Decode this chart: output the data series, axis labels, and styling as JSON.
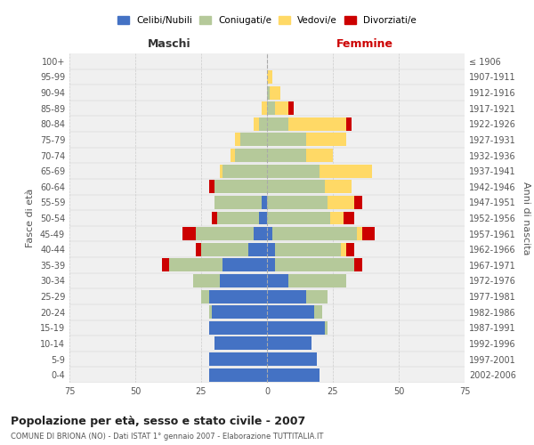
{
  "age_groups": [
    "0-4",
    "5-9",
    "10-14",
    "15-19",
    "20-24",
    "25-29",
    "30-34",
    "35-39",
    "40-44",
    "45-49",
    "50-54",
    "55-59",
    "60-64",
    "65-69",
    "70-74",
    "75-79",
    "80-84",
    "85-89",
    "90-94",
    "95-99",
    "100+"
  ],
  "birth_years": [
    "2002-2006",
    "1997-2001",
    "1992-1996",
    "1987-1991",
    "1982-1986",
    "1977-1981",
    "1972-1976",
    "1967-1971",
    "1962-1966",
    "1957-1961",
    "1952-1956",
    "1947-1951",
    "1942-1946",
    "1937-1941",
    "1932-1936",
    "1927-1931",
    "1922-1926",
    "1917-1921",
    "1912-1916",
    "1907-1911",
    "≤ 1906"
  ],
  "colors": {
    "celibi": "#4472C4",
    "coniugati": "#B5C99A",
    "vedovi": "#FFD966",
    "divorziati": "#CC0000"
  },
  "maschi": {
    "celibi": [
      22,
      22,
      20,
      22,
      21,
      22,
      18,
      17,
      7,
      5,
      3,
      2,
      0,
      0,
      0,
      0,
      0,
      0,
      0,
      0,
      0
    ],
    "coniugati": [
      0,
      0,
      0,
      0,
      1,
      3,
      10,
      20,
      18,
      22,
      16,
      18,
      20,
      17,
      12,
      10,
      3,
      0,
      0,
      0,
      0
    ],
    "vedovi": [
      0,
      0,
      0,
      0,
      0,
      0,
      0,
      0,
      0,
      0,
      0,
      0,
      0,
      1,
      2,
      2,
      2,
      2,
      0,
      0,
      0
    ],
    "divorziati": [
      0,
      0,
      0,
      0,
      0,
      0,
      0,
      3,
      2,
      5,
      2,
      0,
      2,
      0,
      0,
      0,
      0,
      0,
      0,
      0,
      0
    ]
  },
  "femmine": {
    "celibi": [
      20,
      19,
      17,
      22,
      18,
      15,
      8,
      3,
      3,
      2,
      0,
      0,
      0,
      0,
      0,
      0,
      0,
      0,
      0,
      0,
      0
    ],
    "coniugati": [
      0,
      0,
      0,
      1,
      3,
      8,
      22,
      30,
      25,
      32,
      24,
      23,
      22,
      20,
      15,
      15,
      8,
      3,
      1,
      0,
      0
    ],
    "vedovi": [
      0,
      0,
      0,
      0,
      0,
      0,
      0,
      0,
      2,
      2,
      5,
      10,
      10,
      20,
      10,
      15,
      22,
      5,
      4,
      2,
      0
    ],
    "divorziati": [
      0,
      0,
      0,
      0,
      0,
      0,
      0,
      3,
      3,
      5,
      4,
      3,
      0,
      0,
      0,
      0,
      2,
      2,
      0,
      0,
      0
    ]
  },
  "title": "Popolazione per età, sesso e stato civile - 2007",
  "subtitle": "COMUNE DI BRIONA (NO) - Dati ISTAT 1° gennaio 2007 - Elaborazione TUTTITALIA.IT",
  "xlabel_left": "Maschi",
  "xlabel_right": "Femmine",
  "ylabel_left": "Fasce di età",
  "ylabel_right": "Anni di nascita",
  "xlim": 75,
  "bg_color": "#FFFFFF",
  "plot_bg_color": "#F0F0F0",
  "grid_color": "#CCCCCC",
  "legend_labels": [
    "Celibi/Nubili",
    "Coniugati/e",
    "Vedovi/e",
    "Divorziati/e"
  ]
}
